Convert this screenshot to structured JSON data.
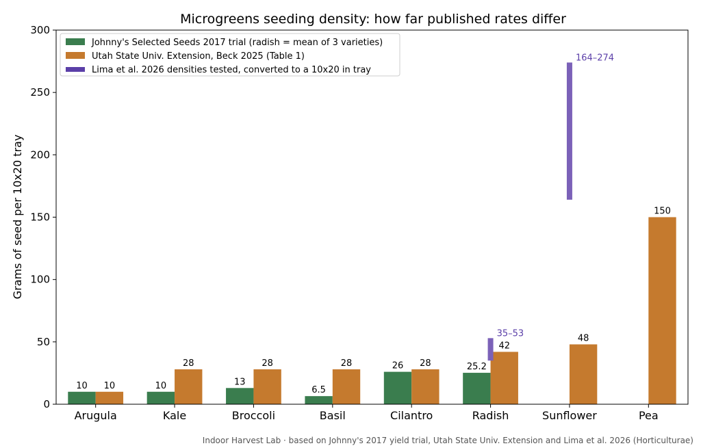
{
  "chart_data": {
    "type": "bar",
    "title": "Microgreens seeding density: how far published rates differ",
    "ylabel": "Grams of seed per 10x20 tray",
    "xlabel": "",
    "ylim": [
      0,
      300
    ],
    "yticks": [
      0,
      50,
      100,
      150,
      200,
      250,
      300
    ],
    "categories": [
      "Arugula",
      "Kale",
      "Broccoli",
      "Basil",
      "Cilantro",
      "Radish",
      "Sunflower",
      "Pea"
    ],
    "series": [
      {
        "name": "Johnny's Selected Seeds 2017 trial (radish = mean of 3 varieties)",
        "color": "#3a7d4e",
        "values": [
          10,
          10,
          13,
          6.5,
          26,
          25.2,
          null,
          null
        ],
        "labels": [
          "10",
          "10",
          "13",
          "6.5",
          "26",
          "25.2",
          "",
          ""
        ]
      },
      {
        "name": "Utah State Univ. Extension, Beck 2025 (Table 1)",
        "color": "#c57a2e",
        "values": [
          10,
          28,
          28,
          28,
          28,
          42,
          48,
          150
        ],
        "labels": [
          "10",
          "28",
          "28",
          "28",
          "28",
          "42",
          "48",
          "150"
        ]
      }
    ],
    "ranges": {
      "name": "Lima et al. 2026 densities tested, converted to a 10x20 in tray",
      "color": "#7b61b8",
      "legend_color": "#5b3fa8",
      "items": [
        {
          "category": "Radish",
          "low": 35,
          "high": 53,
          "label": "35–53"
        },
        {
          "category": "Sunflower",
          "low": 164,
          "high": 274,
          "label": "164–274"
        }
      ]
    },
    "legend_position": "top-left",
    "grid": false
  },
  "footer": "Indoor Harvest Lab · based on Johnny's 2017 yield trial, Utah State Univ. Extension and Lima et al. 2026 (Horticulturae)"
}
